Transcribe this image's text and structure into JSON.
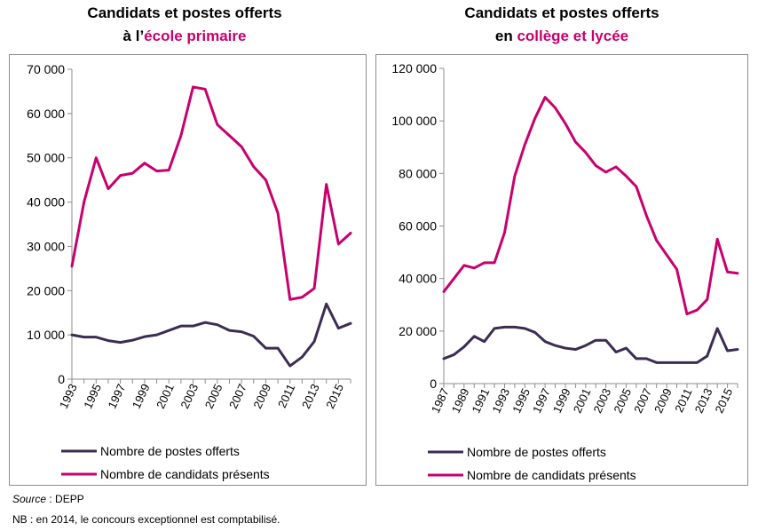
{
  "titles": {
    "left": {
      "line1": "Candidats et postes offerts",
      "line2_prefix": "à l’",
      "line2_accent": "école primaire"
    },
    "right": {
      "line1": "Candidats et postes offerts",
      "line2_prefix": "en ",
      "line2_accent": "collège et lycée"
    }
  },
  "colors": {
    "postes": "#3b2d52",
    "candidats": "#c8006e",
    "axis": "#8c8c8c"
  },
  "chart_data": [
    {
      "type": "line",
      "ylim": [
        0,
        70000
      ],
      "yticks": [
        0,
        10000,
        20000,
        30000,
        40000,
        50000,
        60000,
        70000
      ],
      "ytick_labels": [
        "0",
        "10 000",
        "20 000",
        "30 000",
        "40 000",
        "50 000",
        "60 000",
        "70 000"
      ],
      "x": [
        1993,
        1994,
        1995,
        1996,
        1997,
        1998,
        1999,
        2000,
        2001,
        2002,
        2003,
        2004,
        2005,
        2006,
        2007,
        2008,
        2009,
        2010,
        2011,
        2012,
        2013,
        2014,
        2015,
        2016
      ],
      "xtick_labels": [
        "1993",
        "1995",
        "1997",
        "1999",
        "2001",
        "2003",
        "2005",
        "2007",
        "2009",
        "2011",
        "2013",
        "2015"
      ],
      "series": [
        {
          "name": "Nombre de postes offerts",
          "key": "postes",
          "values": [
            10000,
            9500,
            9500,
            8700,
            8300,
            8800,
            9600,
            10000,
            11000,
            12000,
            12000,
            12800,
            12300,
            11000,
            10700,
            9700,
            7000,
            7000,
            3000,
            5000,
            8500,
            17000,
            11500,
            12600
          ]
        },
        {
          "name": "Nombre de candidats présents",
          "key": "candidats",
          "values": [
            25500,
            40000,
            50000,
            43000,
            46000,
            46500,
            48800,
            47000,
            47200,
            55000,
            66000,
            65500,
            57500,
            55000,
            52500,
            48000,
            45000,
            37500,
            18000,
            18500,
            20500,
            44000,
            30500,
            33000
          ]
        }
      ],
      "legend": "bottom-left"
    },
    {
      "type": "line",
      "ylim": [
        0,
        120000
      ],
      "yticks": [
        0,
        20000,
        40000,
        60000,
        80000,
        100000,
        120000
      ],
      "ytick_labels": [
        "0",
        "20 000",
        "40 000",
        "60 000",
        "80 000",
        "100 000",
        "120 000"
      ],
      "x": [
        1987,
        1988,
        1989,
        1990,
        1991,
        1992,
        1993,
        1994,
        1995,
        1996,
        1997,
        1998,
        1999,
        2000,
        2001,
        2002,
        2003,
        2004,
        2005,
        2006,
        2007,
        2008,
        2009,
        2010,
        2011,
        2012,
        2013,
        2014,
        2015,
        2016
      ],
      "xtick_labels": [
        "1987",
        "1989",
        "1991",
        "1993",
        "1995",
        "1997",
        "1999",
        "2001",
        "2003",
        "2005",
        "2007",
        "2009",
        "2011",
        "2013",
        "2015"
      ],
      "series": [
        {
          "name": "Nombre de postes offerts",
          "key": "postes",
          "values": [
            9500,
            11000,
            14000,
            18000,
            16000,
            21000,
            21500,
            21500,
            21000,
            19500,
            16000,
            14500,
            13500,
            13000,
            14500,
            16500,
            16500,
            12000,
            13500,
            9500,
            9500,
            8000,
            8000,
            8000,
            8000,
            8000,
            10500,
            21000,
            12500,
            13000
          ]
        },
        {
          "name": "Nombre de candidats présents",
          "key": "candidats",
          "values": [
            35000,
            40000,
            45000,
            44000,
            46000,
            46000,
            57500,
            79000,
            91000,
            101000,
            109000,
            105000,
            99000,
            92000,
            88000,
            83000,
            80500,
            82500,
            79000,
            75000,
            64000,
            54500,
            49000,
            43500,
            26500,
            28000,
            32000,
            55000,
            42500,
            42000
          ]
        }
      ],
      "legend": "bottom-left"
    }
  ],
  "footer": {
    "source_label": "Source",
    "source_rest": " : DEPP",
    "note": "NB : en 2014, le concours  exceptionnel  est comptabilisé."
  }
}
